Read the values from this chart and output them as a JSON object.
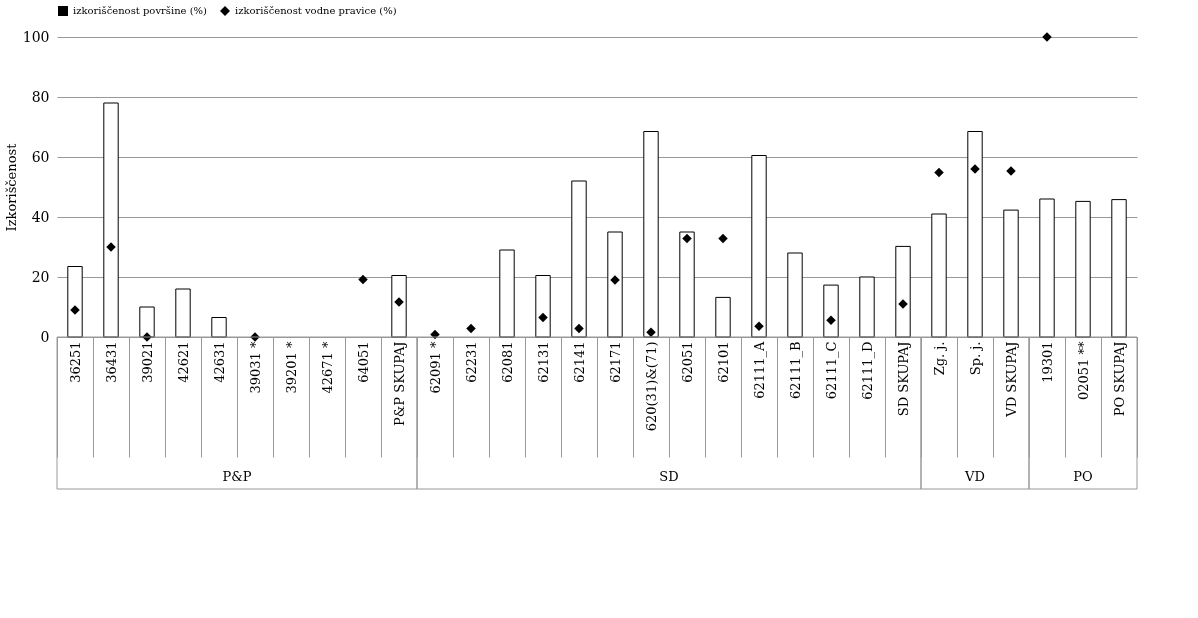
{
  "chart_data": {
    "type": "bar",
    "ylabel": "Izkoriščenost",
    "categories": [
      "36251",
      "36431",
      "39021",
      "42621",
      "42631",
      "39031 *",
      "39201 *",
      "42671 *",
      "64051",
      "P&P SKUPAJ",
      "62091 *",
      "62231",
      "62081",
      "62131",
      "62141",
      "62171",
      "620(31)&(71)",
      "62051",
      "62101",
      "62111_A",
      "62111_B",
      "62111_C",
      "62111_D",
      "SD SKUPAJ",
      "Zg. j.",
      "Sp. j.",
      "VD SKUPAJ",
      "19301",
      "02051 **",
      "PO SKUPAJ"
    ],
    "series": [
      {
        "name": "izkoriščenost površine (%)",
        "color": "#ffffff",
        "values": [
          23.5,
          78,
          10,
          16,
          6.5,
          null,
          null,
          null,
          null,
          20.5,
          null,
          null,
          29,
          20.5,
          52,
          35,
          68.5,
          35,
          13.2,
          60.5,
          28,
          17.3,
          20,
          30.2,
          41,
          68.5,
          42.3,
          46,
          45.2,
          45.8
        ]
      },
      {
        "name": "izkoriščenost vodne pravice (%)",
        "type": "scatter",
        "marker": "diamond",
        "color": "#000000",
        "values": [
          9,
          30,
          0,
          null,
          null,
          0,
          null,
          null,
          19.2,
          11.7,
          0.8,
          2.8,
          null,
          6.5,
          2.8,
          19,
          1.6,
          32.8,
          32.8,
          3.6,
          null,
          5.6,
          null,
          11,
          54.8,
          56,
          55.3,
          100,
          null,
          null
        ]
      }
    ],
    "annotations": [
      "P&P",
      "SD",
      "VD",
      "PO"
    ],
    "ylim": [
      0,
      100
    ],
    "yticks": [
      0,
      20,
      40,
      60,
      80,
      100
    ],
    "grid": "y",
    "legend": "top"
  }
}
